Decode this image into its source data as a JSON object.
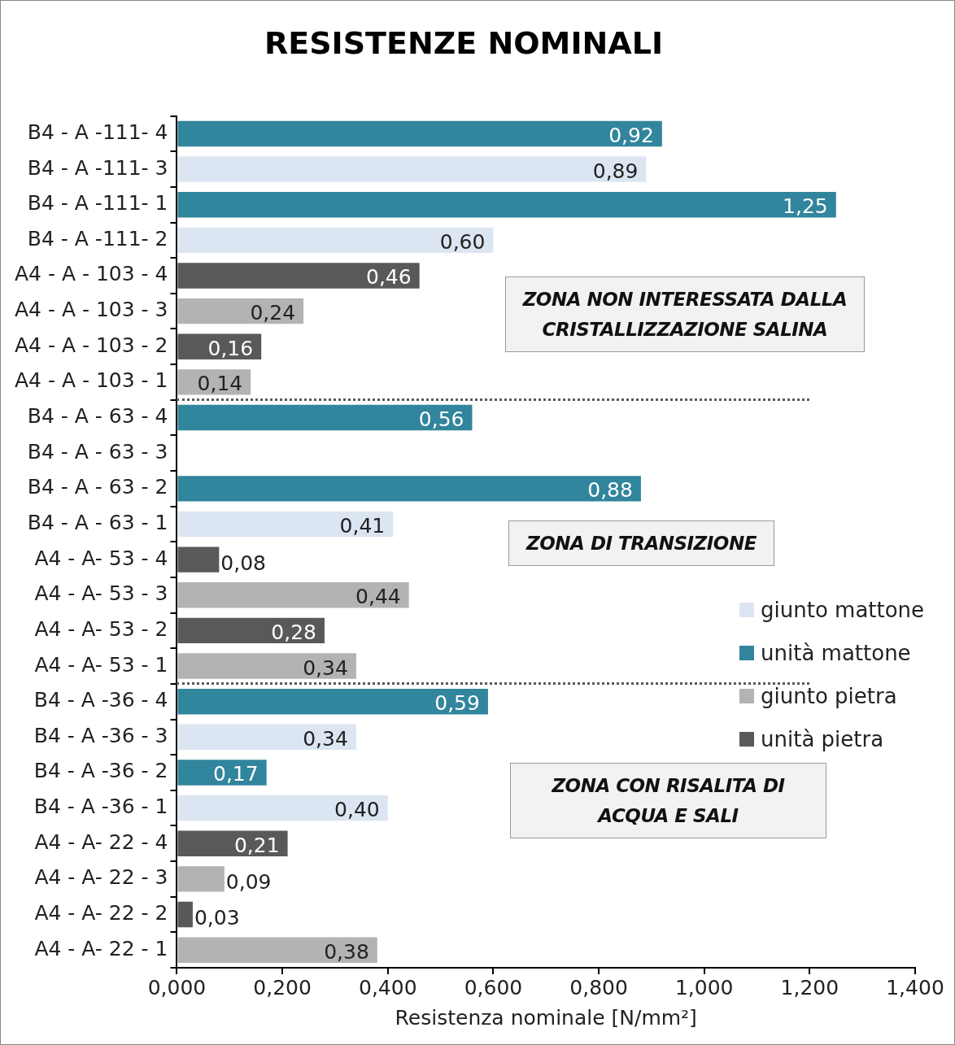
{
  "chart_data": {
    "type": "bar",
    "orientation": "horizontal",
    "title": "RESISTENZE NOMINALI",
    "xlabel": "Resistenza nominale [N/mm²]",
    "categories": [
      "B4 - A -111- 4",
      "B4 - A -111- 3",
      "B4 - A -111- 1",
      "B4 - A -111- 2",
      "A4 - A - 103 - 4",
      "A4 - A - 103 - 3",
      "A4 - A - 103 - 2",
      "A4 - A - 103 - 1",
      "B4 - A - 63 - 4",
      "B4 - A - 63 - 3",
      "B4 - A - 63 - 2",
      "B4 - A - 63 - 1",
      "A4 - A- 53 - 4",
      "A4 - A- 53 - 3",
      "A4 - A- 53 - 2",
      "A4 - A- 53 - 1",
      "B4 - A -36 - 4",
      "B4 - A -36 - 3",
      "B4 - A -36 - 2",
      "B4 - A -36 - 1",
      "A4 - A- 22 - 4",
      "A4 - A- 22 - 3",
      "A4 - A- 22 - 2",
      "A4 - A- 22 - 1"
    ],
    "series": [
      {
        "name": "giunto mattone",
        "color": "#dce6f2",
        "values": [
          null,
          0.89,
          null,
          0.6,
          null,
          null,
          null,
          null,
          null,
          null,
          null,
          0.41,
          null,
          null,
          null,
          null,
          null,
          0.34,
          null,
          0.4,
          null,
          null,
          null,
          null
        ],
        "value_labels": [
          null,
          "0,89",
          null,
          "0,60",
          null,
          null,
          null,
          null,
          null,
          null,
          null,
          "0,41",
          null,
          null,
          null,
          null,
          null,
          "0,34",
          null,
          "0,40",
          null,
          null,
          null,
          null
        ]
      },
      {
        "name": "unità mattone",
        "color": "#31859c",
        "values": [
          0.92,
          null,
          1.25,
          null,
          null,
          null,
          null,
          null,
          0.56,
          null,
          0.88,
          null,
          null,
          null,
          null,
          null,
          0.59,
          null,
          0.17,
          null,
          null,
          null,
          null,
          null
        ],
        "value_labels": [
          "0,92",
          null,
          "1,25",
          null,
          null,
          null,
          null,
          null,
          "0,56",
          null,
          "0,88",
          null,
          null,
          null,
          null,
          null,
          "0,59",
          null,
          "0,17",
          null,
          null,
          null,
          null,
          null
        ]
      },
      {
        "name": "giunto pietra",
        "color": "#b3b3b3",
        "values": [
          null,
          null,
          null,
          null,
          null,
          0.24,
          null,
          0.14,
          null,
          null,
          null,
          null,
          null,
          0.44,
          null,
          0.34,
          null,
          null,
          null,
          null,
          null,
          0.09,
          null,
          0.38
        ],
        "value_labels": [
          null,
          null,
          null,
          null,
          null,
          "0,24",
          null,
          "0,14",
          null,
          null,
          null,
          null,
          null,
          "0,44",
          null,
          "0,34",
          null,
          null,
          null,
          null,
          null,
          "0,09",
          null,
          "0,38"
        ]
      },
      {
        "name": "unità pietra",
        "color": "#595959",
        "values": [
          null,
          null,
          null,
          null,
          0.46,
          null,
          0.16,
          null,
          null,
          null,
          null,
          null,
          0.08,
          null,
          0.28,
          null,
          null,
          null,
          null,
          null,
          0.21,
          null,
          0.03,
          null
        ],
        "value_labels": [
          null,
          null,
          null,
          null,
          "0,46",
          null,
          "0,16",
          null,
          null,
          null,
          null,
          null,
          "0,08",
          null,
          "0,28",
          null,
          null,
          null,
          null,
          null,
          "0,21",
          null,
          "0,03",
          null
        ]
      }
    ],
    "xlim": [
      0,
      1.4
    ],
    "xticks": [
      {
        "value": 0,
        "label": "0,000"
      },
      {
        "value": 0.2,
        "label": "0,200"
      },
      {
        "value": 0.4,
        "label": "0,400"
      },
      {
        "value": 0.6,
        "label": "0,600"
      },
      {
        "value": 0.8,
        "label": "0,800"
      },
      {
        "value": 1.0,
        "label": "1,000"
      },
      {
        "value": 1.2,
        "label": "1,200"
      },
      {
        "value": 1.4,
        "label": "1,400"
      }
    ],
    "grid": false,
    "legend": "right",
    "annotations": [
      "ZONA NON INTERESSATA DALLA CRISTALLIZZAZIONE SALINA",
      "ZONA DI TRANSIZIONE",
      "ZONA CON RISALITA DI ACQUA E SALI"
    ]
  }
}
